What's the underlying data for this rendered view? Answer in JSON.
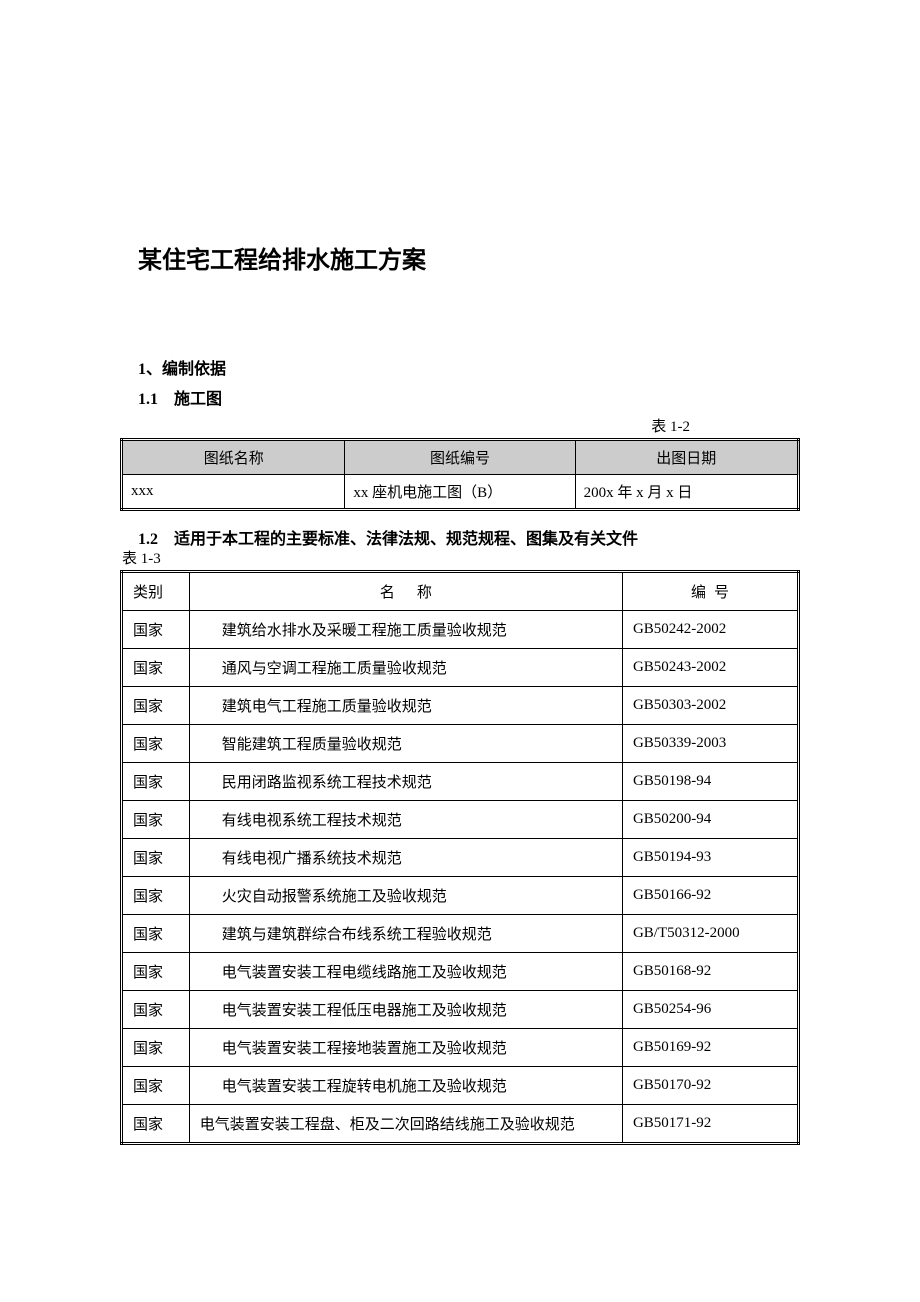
{
  "doc_title": "某住宅工程给排水施工方案",
  "section1": {
    "heading": "1、编制依据",
    "sub1": {
      "heading": "1.1　施工图",
      "table_label": "表 1-2",
      "table": {
        "columns": [
          "图纸名称",
          "图纸编号",
          "出图日期"
        ],
        "rows": [
          [
            "xxx",
            "xx 座机电施工图（B）",
            "200x 年 x 月 x 日"
          ]
        ],
        "col_widths": [
          "33%",
          "34%",
          "33%"
        ],
        "header_bg": "#cccccc",
        "border_color": "#000000",
        "outer_border": "double"
      }
    },
    "sub2": {
      "heading": "1.2　适用于本工程的主要标准、法律法规、规范规程、图集及有关文件",
      "table_label": "表 1-3",
      "table": {
        "columns_raw": [
          "类别",
          "名称",
          "编号"
        ],
        "header_name_spaced": "名　　称",
        "header_code_spaced": "编　号",
        "col_widths": [
          "10%",
          "64%",
          "26%"
        ],
        "border_color": "#000000",
        "outer_border": "double",
        "rows": [
          {
            "cat": "国家",
            "name": "建筑给水排水及采暖工程施工质量验收规范",
            "code": "GB50242-2002"
          },
          {
            "cat": "国家",
            "name": "通风与空调工程施工质量验收规范",
            "code": "GB50243-2002"
          },
          {
            "cat": "国家",
            "name": "建筑电气工程施工质量验收规范",
            "code": "GB50303-2002"
          },
          {
            "cat": "国家",
            "name": "智能建筑工程质量验收规范",
            "code": "GB50339-2003"
          },
          {
            "cat": "国家",
            "name": "民用闭路监视系统工程技术规范",
            "code": "GB50198-94"
          },
          {
            "cat": "国家",
            "name": "有线电视系统工程技术规范",
            "code": "GB50200-94"
          },
          {
            "cat": "国家",
            "name": "有线电视广播系统技术规范",
            "code": "GB50194-93"
          },
          {
            "cat": "国家",
            "name": "火灾自动报警系统施工及验收规范",
            "code": "GB50166-92"
          },
          {
            "cat": "国家",
            "name": "建筑与建筑群综合布线系统工程验收规范",
            "code": "GB/T50312-2000"
          },
          {
            "cat": "国家",
            "name": "电气装置安装工程电缆线路施工及验收规范",
            "code": "GB50168-92"
          },
          {
            "cat": "国家",
            "name": "电气装置安装工程低压电器施工及验收规范",
            "code": "GB50254-96"
          },
          {
            "cat": "国家",
            "name": "电气装置安装工程接地装置施工及验收规范",
            "code": "GB50169-92"
          },
          {
            "cat": "国家",
            "name": "电气装置安装工程旋转电机施工及验收规范",
            "code": "GB50170-92"
          },
          {
            "cat": "国家",
            "name": "电气装置安装工程盘、柜及二次回路结线施工及验收规范",
            "code": "GB50171-92"
          }
        ]
      }
    }
  },
  "typography": {
    "title_fontsize": 24,
    "heading_fontsize": 16,
    "body_fontsize": 15,
    "font_family": "SimSun",
    "text_color": "#000000",
    "background_color": "#ffffff"
  }
}
